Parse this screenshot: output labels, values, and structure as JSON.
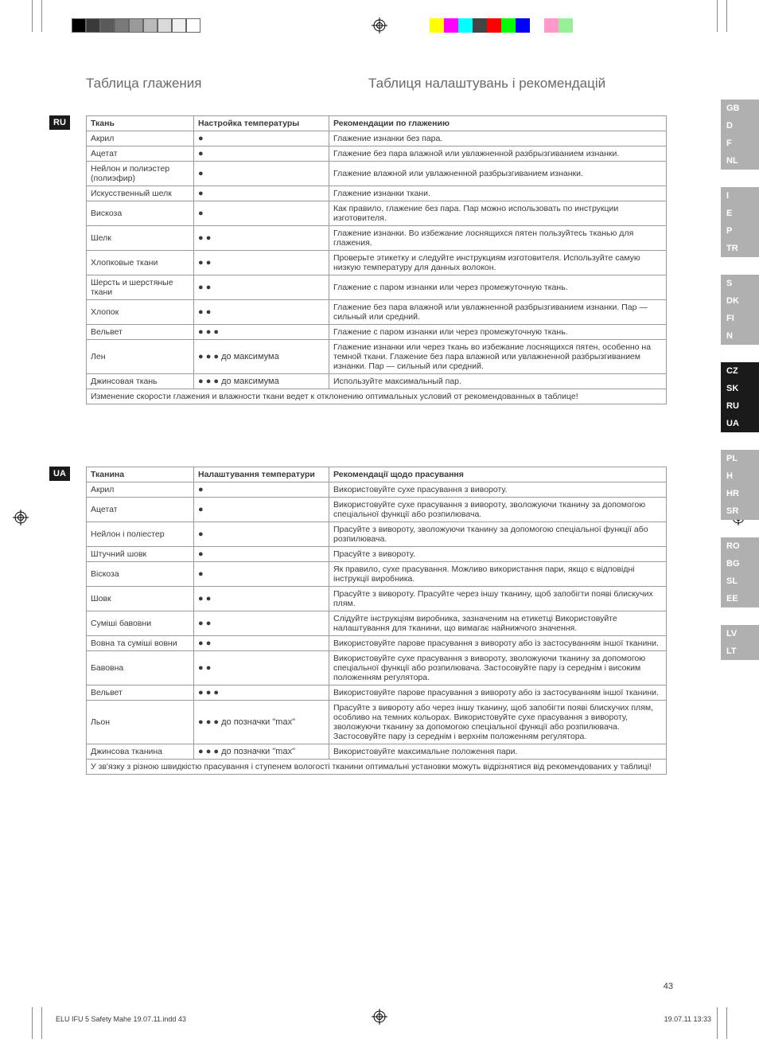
{
  "colorbar_left": [
    "#000000",
    "#3a3a3a",
    "#5a5a5a",
    "#7a7a7a",
    "#9a9a9a",
    "#bababa",
    "#dadada",
    "#f0f0f0",
    "#ffffff"
  ],
  "colorbar_right": [
    "#ffff00",
    "#ff00ff",
    "#00ffff",
    "#444444",
    "#ff0000",
    "#00ff00",
    "#0000ff",
    "#ffffff",
    "#ff99cc",
    "#99ee99"
  ],
  "title_left": "Таблица глажения",
  "title_right": "Таблиця налаштувань і рекомендацій",
  "ru": {
    "badge": "RU",
    "headers": [
      "Ткань",
      "Настройка температуры",
      "Рекомендации по глажению"
    ],
    "rows": [
      {
        "f": "Акрил",
        "t": "●",
        "r": "Глажение изнанки без пара."
      },
      {
        "f": "Ацетат",
        "t": "●",
        "r": "Глажение без пара влажной или увлажненной разбрызгиванием изнанки."
      },
      {
        "f": "Нейлон и полиэстер (полиэфир)",
        "t": "●",
        "r": "Глажение влажной или увлажненной разбрызгиванием изнанки."
      },
      {
        "f": "Искусственный шелк",
        "t": "●",
        "r": "Глажение изнанки ткани."
      },
      {
        "f": "Вискоза",
        "t": "●",
        "r": "Как правило, глажение без пара. Пар можно использовать по инструкции изготовителя."
      },
      {
        "f": "Шелк",
        "t": "● ●",
        "r": "Глажение изнанки. Во избежание лоснящихся пятен пользуйтесь тканью для глажения."
      },
      {
        "f": "Хлопковые ткани",
        "t": "● ●",
        "r": "Проверьте этикетку и следуйте инструкциям изготовителя. Используйте самую низкую температуру для данных волокон."
      },
      {
        "f": "Шерсть и шерстяные ткани",
        "t": "● ●",
        "r": "Глажение с паром изнанки или через промежуточную ткань."
      },
      {
        "f": "Хлопок",
        "t": "● ●",
        "r": "Глажение без пара влажной или увлажненной разбрызгиванием изнанки. Пар — сильный или средний."
      },
      {
        "f": "Вельвет",
        "t": "● ● ●",
        "r": "Глажение с паром изнанки или через промежуточную ткань."
      },
      {
        "f": "Лен",
        "t": "● ● ● до максимума",
        "r": "Глажение изнанки или через ткань во избежание лоснящихся пятен, особенно на темной ткани. Глажение без пара влажной или увлажненной разбрызгиванием изнанки. Пар — сильный или средний."
      },
      {
        "f": "Джинсовая ткань",
        "t": "● ● ● до максимума",
        "r": "Используйте максимальный пар."
      }
    ],
    "footnote": "Изменение скорости глажения и влажности ткани ведет к отклонению оптимальных условий от рекомендованных в таблице!"
  },
  "ua": {
    "badge": "UA",
    "headers": [
      "Тканина",
      "Налаштування температури",
      "Рекомендації щодо прасування"
    ],
    "rows": [
      {
        "f": "Акрил",
        "t": "●",
        "r": "Використовуйте сухе прасування з вивороту."
      },
      {
        "f": "Ацетат",
        "t": "●",
        "r": "Використовуйте сухе прасування з вивороту, зволожуючи тканину за допомогою спеціальної функції або розпилювача."
      },
      {
        "f": "Нейлон і поліестер",
        "t": "●",
        "r": "Прасуйте з вивороту, зволожуючи тканину за допомогою спеціальної функції або розпилювача."
      },
      {
        "f": "Штучний шовк",
        "t": "●",
        "r": "Прасуйте з вивороту."
      },
      {
        "f": "Віскоза",
        "t": "●",
        "r": "Як правило, сухе прасування. Можливо використання пари, якщо є відповідні інструкції виробника."
      },
      {
        "f": "Шовк",
        "t": "● ●",
        "r": "Прасуйте з вивороту. Прасуйте через іншу тканину, щоб запобігти появі блискучих плям."
      },
      {
        "f": "Суміші бавовни",
        "t": "● ●",
        "r": "Слідуйте інструкціям виробника, зазначеним на етикетці Використовуйте налаштування для тканини, що вимагає найнижчого значення."
      },
      {
        "f": "Вовна та суміші вовни",
        "t": "● ●",
        "r": "Використовуйте парове прасування з вивороту або із застосуванням іншої тканини."
      },
      {
        "f": "Бавовна",
        "t": "● ●",
        "r": "Використовуйте сухе прасування з вивороту, зволожуючи тканину за допомогою спеціальної функції або розпилювача. Застосовуйте пару із середнім і високим положенням регулятора."
      },
      {
        "f": "Вельвет",
        "t": "● ● ●",
        "r": "Використовуйте парове прасування з вивороту або із застосуванням іншої тканини."
      },
      {
        "f": "Льон",
        "t": "● ● ● до позначки \"max\"",
        "r": "Прасуйте з вивороту або через іншу тканину, щоб запобігти появі блискучих плям, особливо на темних кольорах. Використовуйте сухе прасування з вивороту, зволожуючи тканину за допомогою спеціальної функції або розпилювача. Застосовуйте пару із середнім і верхнім положенням регулятора."
      },
      {
        "f": "Джинсова тканина",
        "t": "● ● ● до позначки \"max\"",
        "r": "Використовуйте максимальне положення пари."
      }
    ],
    "footnote": "У зв'язку з різною швидкістю прасування і ступенем вологості тканини оптимальні установки можуть відрізнятися від рекомендованих у таблиці!"
  },
  "sidebar_groups": [
    {
      "active": [],
      "items": [
        "GB",
        "D",
        "F",
        "NL"
      ]
    },
    {
      "active": [],
      "items": [
        "I",
        "E",
        "P",
        "TR"
      ]
    },
    {
      "active": [],
      "items": [
        "S",
        "DK",
        "FI",
        "N"
      ]
    },
    {
      "active": [
        "CZ",
        "SK",
        "RU",
        "UA"
      ],
      "items": [
        "CZ",
        "SK",
        "RU",
        "UA"
      ]
    },
    {
      "active": [],
      "items": [
        "PL",
        "H",
        "HR",
        "SR"
      ]
    },
    {
      "active": [],
      "items": [
        "RO",
        "BG",
        "SL",
        "EE"
      ]
    },
    {
      "active": [],
      "items": [
        "LV",
        "LT"
      ]
    }
  ],
  "page_number": "43",
  "footer_left": "ELU IFU 5 Safety Mahe 19.07.11.indd   43",
  "footer_right": "19.07.11   13:33"
}
